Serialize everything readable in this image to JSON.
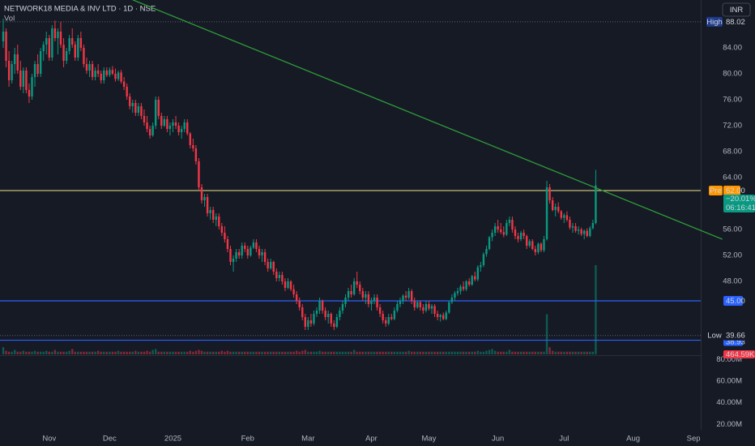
{
  "chart_data": {
    "type": "candlestick",
    "title": "NETWORK18 MEDIA & INV LTD · 1D · NSE",
    "subtitle": "Vol",
    "currency": "INR",
    "up_color": "#089981",
    "down_color": "#f23645",
    "xlim": [
      -1.127,
      242.5
    ],
    "xticks": [
      {
        "value": 16,
        "label": "Nov"
      },
      {
        "value": 37,
        "label": "Dec"
      },
      {
        "value": 59,
        "label": "2025"
      },
      {
        "value": 85,
        "label": "Feb"
      },
      {
        "value": 106,
        "label": "Mar"
      },
      {
        "value": 128,
        "label": "Apr"
      },
      {
        "value": 148,
        "label": "May"
      },
      {
        "value": 172,
        "label": "Jun"
      },
      {
        "value": 195,
        "label": "Jul"
      },
      {
        "value": 219,
        "label": "Aug"
      },
      {
        "value": 240,
        "label": "Sep"
      }
    ],
    "ylim": [
      36.75,
      91.375
    ],
    "yticks": [
      {
        "value": 48,
        "label": "48.00"
      },
      {
        "value": 52,
        "label": "52.00"
      },
      {
        "value": 56,
        "label": "56.00"
      },
      {
        "value": 64,
        "label": "64.00"
      },
      {
        "value": 68,
        "label": "68.00"
      },
      {
        "value": 72,
        "label": "72.00"
      },
      {
        "value": 76,
        "label": "76.00"
      },
      {
        "value": 80,
        "label": "80.00"
      },
      {
        "value": 84,
        "label": "84.00"
      }
    ],
    "vlim": [
      0,
      100
    ],
    "candles": [
      [
        85,
        88.5,
        84,
        86.5
      ],
      [
        86.5,
        87,
        81,
        82
      ],
      [
        82,
        83.5,
        78,
        79
      ],
      [
        79,
        82,
        78.5,
        81.5
      ],
      [
        81.5,
        84,
        80,
        83
      ],
      [
        83,
        84.5,
        80,
        80.5
      ],
      [
        80.5,
        82,
        77.5,
        78
      ],
      [
        78,
        81,
        77,
        80.5
      ],
      [
        80.5,
        81,
        77,
        77.5
      ],
      [
        77.5,
        78.5,
        75.5,
        76.5
      ],
      [
        76.5,
        80,
        76,
        79.5
      ],
      [
        79.5,
        82,
        78,
        81.5
      ],
      [
        81.5,
        83,
        79.5,
        80
      ],
      [
        80,
        84,
        79.5,
        83.5
      ],
      [
        83.5,
        85,
        82,
        84.5
      ],
      [
        84.5,
        86.5,
        83,
        85.5
      ],
      [
        85.5,
        86,
        82,
        82.5
      ],
      [
        82.5,
        87.5,
        82,
        87
      ],
      [
        87,
        88.2,
        85,
        85.5
      ],
      [
        85.5,
        87,
        83,
        86.5
      ],
      [
        86.5,
        88,
        84,
        84.5
      ],
      [
        84.5,
        85.5,
        81,
        82
      ],
      [
        82,
        84,
        81.5,
        83.5
      ],
      [
        83.5,
        86,
        83,
        85.5
      ],
      [
        85.5,
        87,
        84,
        84.5
      ],
      [
        84.5,
        85,
        82,
        82.5
      ],
      [
        82.5,
        86,
        82,
        85.5
      ],
      [
        85.5,
        86.5,
        83.5,
        84
      ],
      [
        84,
        84.5,
        81,
        81.5
      ],
      [
        81.5,
        82.5,
        80,
        80.5
      ],
      [
        80.5,
        82,
        79.5,
        81.5
      ],
      [
        81.5,
        82,
        79,
        79.5
      ],
      [
        79.5,
        81,
        79,
        80.5
      ],
      [
        80.5,
        81.5,
        79.5,
        80
      ],
      [
        80,
        80.5,
        78.5,
        79
      ],
      [
        79,
        81,
        78.5,
        80.5
      ],
      [
        80.5,
        81,
        79.5,
        79.8
      ],
      [
        79.8,
        81,
        79.5,
        80.6
      ],
      [
        80.6,
        81.2,
        79.8,
        80
      ],
      [
        80,
        80.8,
        78.8,
        79.2
      ],
      [
        79.2,
        80.5,
        78.9,
        80.2
      ],
      [
        80.2,
        80.6,
        78.5,
        78.8
      ],
      [
        78.8,
        79.5,
        77.5,
        78
      ],
      [
        78,
        78.5,
        76,
        76.5
      ],
      [
        76.5,
        77,
        74.5,
        75
      ],
      [
        75,
        76,
        74,
        75.5
      ],
      [
        75.5,
        76,
        73.5,
        74
      ],
      [
        74,
        75.5,
        73.5,
        75
      ],
      [
        75,
        75.5,
        73,
        73.5
      ],
      [
        73.5,
        74.5,
        72,
        72.5
      ],
      [
        72.5,
        73.5,
        71,
        71.5
      ],
      [
        71.5,
        72,
        70,
        70.5
      ],
      [
        70.5,
        72.5,
        70.3,
        72
      ],
      [
        72,
        76.5,
        71.5,
        76
      ],
      [
        76,
        76.5,
        73,
        73.5
      ],
      [
        73.5,
        74,
        71.5,
        72
      ],
      [
        72,
        73.5,
        71.8,
        73
      ],
      [
        73,
        73.5,
        71,
        71.5
      ],
      [
        71.5,
        72.5,
        70.5,
        72
      ],
      [
        72,
        73,
        71,
        72.5
      ],
      [
        72.5,
        73.5,
        71.5,
        72
      ],
      [
        72,
        72.5,
        70.5,
        71
      ],
      [
        71,
        72,
        70,
        71.5
      ],
      [
        71.5,
        73,
        71,
        72.5
      ],
      [
        72.5,
        73,
        70.5,
        70.8
      ],
      [
        70.8,
        71,
        68.5,
        69
      ],
      [
        69,
        70,
        68,
        68.5
      ],
      [
        68.5,
        69,
        66,
        66.5
      ],
      [
        66.5,
        67,
        62,
        62.5
      ],
      [
        62.5,
        63,
        60,
        60.5
      ],
      [
        60.5,
        61.5,
        59.5,
        61
      ],
      [
        61,
        61.5,
        58,
        58.5
      ],
      [
        58.5,
        59.5,
        57.5,
        59
      ],
      [
        59,
        59.5,
        57,
        57.5
      ],
      [
        57.5,
        58.5,
        56.5,
        58
      ],
      [
        58,
        58.5,
        56,
        56.5
      ],
      [
        56.5,
        57,
        55,
        55.5
      ],
      [
        55.5,
        56.5,
        54,
        54.5
      ],
      [
        54.5,
        55,
        52.5,
        53
      ],
      [
        53,
        53.5,
        50.5,
        51
      ],
      [
        51,
        52,
        49.5,
        51.5
      ],
      [
        51.5,
        53,
        51,
        52.5
      ],
      [
        52.5,
        53,
        51.5,
        52
      ],
      [
        52,
        54,
        51.5,
        53.5
      ],
      [
        53.5,
        54,
        52.5,
        53
      ],
      [
        53,
        53.5,
        51.5,
        52
      ],
      [
        52,
        53.5,
        51.8,
        53.2
      ],
      [
        53.2,
        54.5,
        53,
        54
      ],
      [
        54,
        54.5,
        52.5,
        53
      ],
      [
        53,
        53.5,
        51.5,
        52
      ],
      [
        52,
        53,
        51,
        52.5
      ],
      [
        52.5,
        53,
        50.5,
        51
      ],
      [
        51,
        51.5,
        49.5,
        50
      ],
      [
        50,
        51.5,
        49.8,
        51
      ],
      [
        51,
        51.2,
        49,
        49.5
      ],
      [
        49.5,
        50,
        48,
        48.5
      ],
      [
        48.5,
        49.5,
        48,
        49
      ],
      [
        49,
        49.5,
        47.5,
        48
      ],
      [
        48,
        48.5,
        46.5,
        47
      ],
      [
        47,
        48.5,
        46.8,
        48
      ],
      [
        48,
        48.2,
        46.5,
        46.8
      ],
      [
        46.8,
        47.5,
        45.5,
        46
      ],
      [
        46,
        46.5,
        44.5,
        45
      ],
      [
        45,
        45.5,
        43.5,
        44
      ],
      [
        44,
        44.5,
        42,
        42.5
      ],
      [
        42.5,
        43,
        40.5,
        41
      ],
      [
        41,
        42.5,
        40.5,
        42
      ],
      [
        42,
        43,
        41,
        41.5
      ],
      [
        41.5,
        43.5,
        41.2,
        43
      ],
      [
        43,
        44,
        42.5,
        43.5
      ],
      [
        43.5,
        45.5,
        43,
        45
      ],
      [
        45,
        45.2,
        43,
        43.5
      ],
      [
        43.5,
        44,
        42,
        42.5
      ],
      [
        42.5,
        43.5,
        41.5,
        43
      ],
      [
        43,
        43.2,
        41,
        41.5
      ],
      [
        41.5,
        42,
        40.5,
        41
      ],
      [
        41,
        43,
        40.8,
        42.5
      ],
      [
        42.5,
        44,
        42,
        43.5
      ],
      [
        43.5,
        45,
        43,
        44.5
      ],
      [
        44.5,
        46,
        44,
        45.5
      ],
      [
        45.5,
        47,
        45,
        46.5
      ],
      [
        46.5,
        47.5,
        45.5,
        46
      ],
      [
        46,
        48.5,
        45.8,
        48
      ],
      [
        48,
        49.5,
        47,
        47.5
      ],
      [
        47.5,
        48,
        46,
        46.5
      ],
      [
        46.5,
        47,
        45,
        45.5
      ],
      [
        45.5,
        46.5,
        44.5,
        46
      ],
      [
        46,
        46.5,
        44,
        44.5
      ],
      [
        44.5,
        45.5,
        43.5,
        45
      ],
      [
        45,
        46,
        44.5,
        45.5
      ],
      [
        45.5,
        46,
        43.5,
        44
      ],
      [
        44,
        44.5,
        42.5,
        43
      ],
      [
        43,
        43.5,
        41.5,
        42
      ],
      [
        42,
        42.5,
        41,
        41.5
      ],
      [
        41.5,
        43,
        41.2,
        42.5
      ],
      [
        42.5,
        43,
        42,
        42.2
      ],
      [
        42.2,
        44,
        42,
        43.5
      ],
      [
        43.5,
        45,
        43.2,
        44.5
      ],
      [
        44.5,
        45.5,
        44,
        45
      ],
      [
        45,
        46,
        44.5,
        45.8
      ],
      [
        45.8,
        46.5,
        45,
        45.5
      ],
      [
        45.5,
        47,
        45.2,
        46.5
      ],
      [
        46.5,
        46.8,
        44.5,
        45
      ],
      [
        45,
        45.5,
        43.5,
        44
      ],
      [
        44,
        45,
        43.8,
        44.8
      ],
      [
        44.8,
        45,
        43.5,
        44
      ],
      [
        44,
        44.5,
        43,
        43.5
      ],
      [
        43.5,
        45,
        43.2,
        44.5
      ],
      [
        44.5,
        45,
        43.5,
        43.8
      ],
      [
        43.8,
        44.5,
        43,
        44.2
      ],
      [
        44.2,
        44.5,
        42.5,
        43
      ],
      [
        43,
        43.5,
        42,
        42.5
      ],
      [
        42.5,
        43,
        41.8,
        42.8
      ],
      [
        42.8,
        43.2,
        42,
        42.2
      ],
      [
        42.2,
        43.5,
        42,
        43.2
      ],
      [
        43.2,
        45,
        43,
        44.8
      ],
      [
        44.8,
        46,
        44.5,
        45.5
      ],
      [
        45.5,
        46.5,
        45,
        46.2
      ],
      [
        46.2,
        47,
        45.8,
        46.5
      ],
      [
        46.5,
        47.5,
        46,
        47.2
      ],
      [
        47.2,
        48,
        46.5,
        46.8
      ],
      [
        46.8,
        48.2,
        46.5,
        48
      ],
      [
        48,
        48.5,
        47.2,
        47.5
      ],
      [
        47.5,
        49,
        47.3,
        48.8
      ],
      [
        48.8,
        49.5,
        48,
        48.3
      ],
      [
        48.3,
        50.5,
        48,
        50.2
      ],
      [
        50.2,
        51,
        49.5,
        50.5
      ],
      [
        50.5,
        52.5,
        50.2,
        52.2
      ],
      [
        52.2,
        53.5,
        51.8,
        53
      ],
      [
        53,
        55,
        52.8,
        54.8
      ],
      [
        54.8,
        56,
        54.2,
        55.5
      ],
      [
        55.5,
        57,
        55,
        56.5
      ],
      [
        56.5,
        57.5,
        55.5,
        56
      ],
      [
        56,
        57,
        55.3,
        55.6
      ],
      [
        55.6,
        56.5,
        54.8,
        55.2
      ],
      [
        55.2,
        57.5,
        55,
        57
      ],
      [
        57,
        58,
        56.5,
        57.5
      ],
      [
        57.5,
        58,
        55.5,
        56
      ],
      [
        56,
        56.5,
        54.5,
        55
      ],
      [
        55,
        55.5,
        54,
        54.5
      ],
      [
        54.5,
        55.8,
        54.2,
        55.5
      ],
      [
        55.5,
        56,
        54.5,
        55
      ],
      [
        55,
        55.2,
        53,
        53.5
      ],
      [
        53.5,
        54.5,
        53.2,
        54.2
      ],
      [
        54.2,
        54.5,
        52.8,
        53
      ],
      [
        53,
        53.5,
        52,
        52.5
      ],
      [
        52.5,
        54,
        52.2,
        53.8
      ],
      [
        53.8,
        54,
        52.5,
        52.8
      ],
      [
        52.8,
        55,
        52.5,
        54.5
      ],
      [
        54.5,
        63.5,
        54.3,
        62.5
      ],
      [
        62.5,
        63,
        60,
        60.5
      ],
      [
        60.5,
        61,
        58.8,
        59
      ],
      [
        59,
        60,
        58,
        59.5
      ],
      [
        59.5,
        60.2,
        58.5,
        58.8
      ],
      [
        58.8,
        59,
        57.5,
        57.8
      ],
      [
        57.8,
        58.5,
        57,
        58.2
      ],
      [
        58.2,
        58.8,
        57.2,
        57.5
      ],
      [
        57.5,
        58,
        56,
        56.3
      ],
      [
        56.3,
        57,
        55.5,
        56.5
      ],
      [
        56.5,
        57,
        55.5,
        55.8
      ],
      [
        55.8,
        56.5,
        55.2,
        56
      ],
      [
        56,
        56.3,
        55,
        55.3
      ],
      [
        55.3,
        56,
        54.5,
        55.8
      ],
      [
        55.8,
        56.2,
        54.8,
        55
      ],
      [
        55,
        56.5,
        54.8,
        56.2
      ],
      [
        56.2,
        57.5,
        56,
        57
      ],
      [
        57,
        65.2,
        56.8,
        62.8
      ]
    ],
    "volume": [
      8,
      4,
      3,
      3,
      5,
      3,
      3,
      4,
      3,
      3,
      3,
      4,
      3,
      3,
      3,
      4,
      3,
      3,
      5,
      3,
      3,
      3,
      3,
      4,
      6,
      3,
      3,
      3,
      3,
      3,
      3,
      3,
      3,
      4,
      3,
      3,
      3,
      3,
      3,
      3,
      4,
      3,
      3,
      3,
      3,
      3,
      4,
      3,
      3,
      3,
      4,
      3,
      5,
      6,
      3,
      3,
      3,
      3,
      3,
      3,
      3,
      3,
      3,
      3,
      3,
      4,
      3,
      4,
      5,
      4,
      3,
      3,
      3,
      3,
      3,
      3,
      4,
      3,
      4,
      3,
      3,
      3,
      3,
      3,
      3,
      3,
      3,
      3,
      3,
      3,
      3,
      3,
      3,
      3,
      3,
      3,
      3,
      3,
      3,
      3,
      3,
      3,
      4,
      3,
      4,
      5,
      3,
      3,
      3,
      3,
      4,
      3,
      3,
      3,
      3,
      3,
      3,
      3,
      3,
      3,
      3,
      3,
      5,
      3,
      3,
      3,
      3,
      3,
      3,
      3,
      3,
      3,
      3,
      3,
      3,
      3,
      3,
      3,
      3,
      3,
      3,
      4,
      3,
      3,
      3,
      3,
      3,
      3,
      3,
      3,
      3,
      3,
      3,
      3,
      3,
      3,
      3,
      3,
      3,
      3,
      3,
      3,
      3,
      3,
      3,
      4,
      3,
      3,
      4,
      5,
      6,
      4,
      3,
      3,
      3,
      3,
      5,
      3,
      3,
      3,
      3,
      3,
      3,
      3,
      3,
      3,
      3,
      3,
      3,
      45,
      8,
      4,
      3,
      3,
      3,
      3,
      3,
      3,
      3,
      3,
      3,
      3,
      3,
      3,
      3,
      3,
      100
    ],
    "volume_label": "464.59K",
    "trendline": {
      "x": [
        45,
        250
      ],
      "y": [
        91.4,
        54.5
      ],
      "color": "#2e9e3a"
    },
    "levels": [
      {
        "value": 45,
        "label": "45.00",
        "color": "#2962ff"
      },
      {
        "value": 38.93,
        "color": "#2962ff"
      }
    ],
    "high": {
      "name": "High",
      "value": 88.02
    },
    "low": {
      "name": "Low",
      "value": 39.66
    },
    "pre": {
      "name": "Pre",
      "value": 62,
      "label": "62.00",
      "color": "#f0e68c",
      "change": "−20.01%",
      "countdown": "06:16:41"
    },
    "volume_pane": {
      "ylim": [
        0,
        82500000
      ],
      "yticks": [
        {
          "value": 80000000,
          "label": "80.00M"
        },
        {
          "value": 60000000,
          "label": "60.00M"
        },
        {
          "value": 40000000,
          "label": "40.00M"
        },
        {
          "value": 20000000,
          "label": "20.00M"
        }
      ]
    }
  }
}
